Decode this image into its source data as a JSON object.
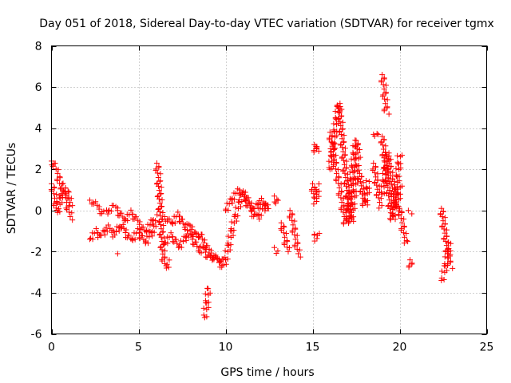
{
  "chart_data": {
    "type": "scatter",
    "title": "Day 051 of 2018, Sidereal Day-to-day VTEC variation (SDTVAR) for receiver tgmx",
    "xlabel": "GPS time / hours",
    "ylabel": "SDTVAR / TECUs",
    "xlim": [
      0,
      25
    ],
    "ylim": [
      -6,
      8
    ],
    "grid": true,
    "marker": "+",
    "color": "#ff0000",
    "xticks": [
      0,
      5,
      10,
      15,
      20,
      25
    ],
    "xtick_labels": [
      "0",
      "5",
      "10",
      "15",
      "20",
      "25"
    ],
    "yticks": [
      -6,
      -4,
      -2,
      0,
      2,
      4,
      6,
      8
    ],
    "ytick_labels": [
      "-6",
      "-4",
      "-2",
      "0",
      "2",
      "4",
      "6",
      "8"
    ],
    "series": [
      {
        "name": "tgmx",
        "segments": [
          {
            "x": [
              0.0,
              0.05,
              0.1,
              0.15,
              0.2,
              0.25,
              0.3,
              0.35,
              0.4,
              0.45,
              0.5,
              0.55,
              0.6,
              0.65,
              0.7,
              0.75,
              0.8,
              0.85,
              0.9,
              0.95,
              1.0,
              1.05,
              1.1
            ],
            "y": [
              2.4,
              2.35,
              2.3,
              2.2,
              2.1,
              2.0,
              1.9,
              1.8,
              1.6,
              1.4,
              1.2,
              1.1,
              1.0,
              0.9,
              0.8,
              0.7,
              0.6,
              0.5,
              0.3,
              0.1,
              0.0,
              -0.2,
              -0.4
            ]
          },
          {
            "x": [
              0.0,
              0.05,
              0.1,
              0.15,
              0.2,
              0.25,
              0.3,
              0.35,
              0.4,
              0.45,
              0.5,
              0.6,
              0.7,
              0.8,
              0.9,
              1.0,
              1.1
            ],
            "y": [
              1.3,
              1.2,
              1.0,
              0.8,
              0.5,
              0.2,
              0.0,
              -0.1,
              0.1,
              0.3,
              0.6,
              0.9,
              1.2,
              1.1,
              0.9,
              0.6,
              0.3
            ]
          },
          {
            "x": [
              2.2,
              2.4,
              2.6,
              2.8,
              3.0,
              3.2,
              3.4,
              3.6,
              3.8,
              4.0,
              4.2,
              4.4,
              4.6,
              4.8,
              5.0,
              5.2,
              5.4,
              5.6,
              5.8,
              6.0
            ],
            "y": [
              0.5,
              0.4,
              0.2,
              0.0,
              -0.2,
              -0.1,
              0.1,
              0.2,
              0.0,
              -0.3,
              -0.5,
              -0.3,
              -0.1,
              -0.4,
              -0.6,
              -0.9,
              -1.1,
              -0.8,
              -0.5,
              -0.3
            ]
          },
          {
            "x": [
              2.2,
              2.4,
              2.6,
              2.8,
              3.0,
              3.2,
              3.4,
              3.6,
              3.8,
              4.0,
              4.2,
              4.4,
              4.6,
              4.8,
              5.0,
              5.2,
              5.4,
              5.6,
              5.8,
              6.0
            ],
            "y": [
              -1.4,
              -1.2,
              -1.0,
              -1.3,
              -1.1,
              -0.8,
              -1.0,
              -1.2,
              -0.9,
              -0.7,
              -1.0,
              -1.3,
              -1.5,
              -1.2,
              -1.0,
              -1.4,
              -1.6,
              -1.3,
              -1.0,
              -0.8
            ]
          },
          {
            "x": [
              3.8
            ],
            "y": [
              -2.1
            ]
          },
          {
            "x": [
              6.05,
              6.1,
              6.15,
              6.2,
              6.25,
              6.3,
              6.35,
              6.4,
              6.5,
              6.6,
              6.7
            ],
            "y": [
              2.3,
              2.0,
              1.5,
              0.8,
              0.0,
              -0.8,
              -1.5,
              -2.2,
              -2.6,
              -2.8,
              -2.5
            ]
          },
          {
            "x": [
              6.5,
              6.7,
              6.9,
              7.1,
              7.3,
              7.5,
              7.7,
              7.9,
              8.1,
              8.3,
              8.5,
              8.7,
              8.9,
              9.1,
              9.3,
              9.5,
              9.7,
              9.9
            ],
            "y": [
              -0.3,
              -0.5,
              -0.7,
              -0.4,
              -0.2,
              -0.6,
              -0.9,
              -0.7,
              -1.0,
              -1.3,
              -1.1,
              -1.5,
              -1.8,
              -2.0,
              -2.2,
              -2.4,
              -2.6,
              -2.8
            ]
          },
          {
            "x": [
              6.5,
              6.7,
              6.9,
              7.1,
              7.3,
              7.5,
              7.7,
              7.9,
              8.1,
              8.3,
              8.5,
              8.7,
              8.9,
              9.1,
              9.3,
              9.5,
              9.7,
              9.9
            ],
            "y": [
              -1.6,
              -1.4,
              -1.2,
              -1.5,
              -1.8,
              -1.6,
              -1.3,
              -1.1,
              -1.4,
              -1.7,
              -2.0,
              -1.8,
              -2.1,
              -2.4,
              -2.2,
              -2.5,
              -2.3,
              -2.6
            ]
          },
          {
            "x": [
              8.8,
              8.85,
              8.9,
              8.95,
              9.0
            ],
            "y": [
              -5.2,
              -4.9,
              -4.6,
              -4.2,
              -3.8
            ]
          },
          {
            "x": [
              10.0,
              10.1,
              10.2,
              10.3,
              10.4,
              10.5,
              10.6,
              10.7,
              10.8,
              10.9,
              11.0,
              11.2,
              11.4,
              11.6,
              11.8,
              12.0,
              12.2,
              12.4
            ],
            "y": [
              -2.4,
              -2.0,
              -1.6,
              -1.2,
              -0.8,
              -0.5,
              -0.2,
              0.1,
              0.4,
              0.7,
              0.9,
              0.6,
              0.3,
              0.0,
              0.2,
              0.5,
              0.3,
              0.0
            ]
          },
          {
            "x": [
              10.0,
              10.2,
              10.4,
              10.6,
              10.8,
              11.0,
              11.2,
              11.4,
              11.6,
              11.8,
              12.0,
              12.2,
              12.4
            ],
            "y": [
              0.0,
              0.3,
              0.6,
              0.8,
              1.0,
              0.7,
              0.4,
              0.1,
              -0.2,
              -0.4,
              -0.1,
              0.2,
              0.4
            ]
          },
          {
            "x": [
              12.8,
              12.9,
              13.0
            ],
            "y": [
              0.7,
              0.5,
              0.3
            ]
          },
          {
            "x": [
              12.8,
              12.9,
              13.0
            ],
            "y": [
              -1.8,
              -1.9,
              -2.0
            ]
          },
          {
            "x": [
              13.2,
              13.3,
              13.4,
              13.5,
              13.6
            ],
            "y": [
              -0.6,
              -0.9,
              -1.3,
              -1.7,
              -2.0
            ]
          },
          {
            "x": [
              13.7,
              13.8,
              13.9,
              14.0,
              14.1,
              14.2
            ],
            "y": [
              0.0,
              -0.4,
              -0.8,
              -1.3,
              -1.8,
              -2.2
            ]
          },
          {
            "x": [
              15.0,
              15.05,
              15.1,
              15.15,
              15.2,
              15.25,
              15.3
            ],
            "y": [
              1.3,
              1.0,
              0.7,
              0.4,
              0.6,
              0.9,
              1.2
            ]
          },
          {
            "x": [
              15.1,
              15.15,
              15.2,
              15.25
            ],
            "y": [
              3.2,
              3.0,
              2.8,
              3.1
            ]
          },
          {
            "x": [
              15.1,
              15.15,
              15.2,
              15.25
            ],
            "y": [
              -1.2,
              -1.3,
              -1.4,
              -1.1
            ]
          },
          {
            "x": [
              16.0,
              16.1,
              16.2,
              16.3,
              16.4,
              16.5,
              16.6,
              16.7,
              16.8,
              16.9,
              17.0,
              17.1,
              17.2,
              17.3,
              17.4,
              17.5,
              17.6
            ],
            "y": [
              2.0,
              2.6,
              3.3,
              4.0,
              4.6,
              5.2,
              4.3,
              3.4,
              2.5,
              1.6,
              0.8,
              0.0,
              -0.6,
              0.2,
              1.0,
              1.8,
              2.6
            ]
          },
          {
            "x": [
              16.0,
              16.1,
              16.2,
              16.3,
              16.4,
              16.5,
              16.6,
              16.7,
              16.8,
              16.9,
              17.0,
              17.1,
              17.2,
              17.3,
              17.4,
              17.5,
              17.6
            ],
            "y": [
              3.8,
              3.3,
              2.7,
              2.2,
              1.7,
              1.3,
              0.8,
              0.3,
              -0.2,
              -0.7,
              -0.3,
              0.5,
              1.3,
              2.1,
              2.9,
              3.4,
              2.8
            ]
          },
          {
            "x": [
              17.7,
              17.8,
              17.9,
              18.0,
              18.1,
              18.2
            ],
            "y": [
              1.8,
              1.2,
              0.6,
              0.2,
              0.8,
              1.4
            ]
          },
          {
            "x": [
              18.5,
              18.6,
              18.7
            ],
            "y": [
              3.7,
              3.8,
              3.6
            ]
          },
          {
            "x": [
              18.5,
              18.6,
              18.7,
              18.8,
              18.9
            ],
            "y": [
              2.3,
              1.8,
              1.2,
              0.6,
              0.2
            ]
          },
          {
            "x": [
              19.0,
              19.05,
              19.1,
              19.15,
              19.2,
              19.25
            ],
            "y": [
              6.6,
              6.3,
              6.0,
              5.5,
              5.0,
              4.7
            ]
          },
          {
            "x": [
              19.0,
              19.1,
              19.2,
              19.3,
              19.4,
              19.5,
              19.6,
              19.7,
              19.8,
              19.9,
              20.0
            ],
            "y": [
              3.6,
              2.8,
              2.0,
              1.3,
              0.6,
              -0.2,
              -0.5,
              0.3,
              1.1,
              1.9,
              2.7
            ]
          },
          {
            "x": [
              19.0,
              19.1,
              19.2,
              19.3,
              19.4,
              19.5,
              19.6,
              19.7,
              19.8,
              19.9,
              20.0
            ],
            "y": [
              0.8,
              1.4,
              2.1,
              2.8,
              2.3,
              1.6,
              1.0,
              0.4,
              0.0,
              0.6,
              1.2
            ]
          },
          {
            "x": [
              20.0,
              20.1,
              20.2,
              20.3,
              20.4
            ],
            "y": [
              0.1,
              -0.4,
              -0.9,
              -1.4,
              -1.6
            ]
          },
          {
            "x": [
              20.5,
              20.6
            ],
            "y": [
              0.0,
              -0.1
            ]
          },
          {
            "x": [
              20.6,
              20.65
            ],
            "y": [
              -2.4,
              -2.8
            ]
          },
          {
            "x": [
              22.4,
              22.5,
              22.6,
              22.7,
              22.8,
              22.9
            ],
            "y": [
              0.1,
              -0.5,
              -1.1,
              -1.7,
              -2.3,
              -2.8
            ]
          },
          {
            "x": [
              22.4,
              22.5,
              22.6,
              22.7,
              22.8,
              22.9
            ],
            "y": [
              -3.4,
              -3.2,
              -2.8,
              -2.4,
              -2.0,
              -1.6
            ]
          }
        ]
      }
    ]
  }
}
